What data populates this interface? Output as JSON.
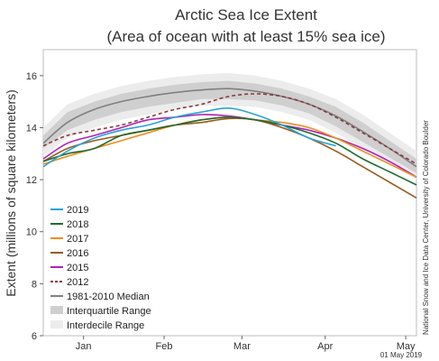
{
  "chart_data": {
    "type": "line",
    "title": "Arctic Sea Ice Extent",
    "subtitle": "(Area of ocean with at least 15% sea ice)",
    "ylabel": "Extent (millions of square kilometers)",
    "ylim": [
      6,
      17
    ],
    "yticks": [
      6,
      8,
      10,
      12,
      14,
      16
    ],
    "xlim": [
      1,
      140
    ],
    "xticks": [
      {
        "label": "Jan",
        "day": 16
      },
      {
        "label": "Feb",
        "day": 46
      },
      {
        "label": "Mar",
        "day": 75
      },
      {
        "label": "Apr",
        "day": 106
      },
      {
        "label": "May",
        "day": 136
      }
    ],
    "credit": "National Snow and Ice Data Center, University of Colorado Boulder",
    "date_label": "01 May 2019",
    "x": [
      1,
      10,
      20,
      30,
      40,
      50,
      60,
      70,
      80,
      90,
      100,
      110,
      120,
      130,
      140
    ],
    "interdecile_range": {
      "name": "Interdecile Range",
      "color": "#ececec",
      "upper": [
        14.0,
        14.9,
        15.3,
        15.6,
        15.8,
        15.95,
        16.05,
        16.1,
        16.0,
        15.8,
        15.5,
        15.1,
        14.5,
        13.8,
        13.1
      ],
      "lower": [
        12.9,
        13.6,
        14.0,
        14.3,
        14.5,
        14.7,
        14.85,
        14.85,
        14.8,
        14.6,
        14.3,
        13.8,
        13.2,
        12.6,
        12.0
      ]
    },
    "interquartile_range": {
      "name": "Interquartile Range",
      "color": "#cfcfcf",
      "upper": [
        13.7,
        14.6,
        15.0,
        15.3,
        15.5,
        15.65,
        15.75,
        15.8,
        15.7,
        15.5,
        15.2,
        14.8,
        14.2,
        13.5,
        12.8
      ],
      "lower": [
        13.2,
        13.9,
        14.3,
        14.6,
        14.8,
        14.95,
        15.1,
        15.1,
        15.05,
        14.85,
        14.55,
        14.05,
        13.45,
        12.85,
        12.25
      ]
    },
    "series": [
      {
        "name": "2019",
        "color": "#29a3d6",
        "dash": "",
        "values": [
          12.5,
          13.1,
          13.6,
          13.9,
          14.1,
          14.4,
          14.6,
          14.75,
          14.5,
          14.1,
          13.6,
          13.3,
          null,
          null,
          null
        ]
      },
      {
        "name": "2018",
        "color": "#1f6b2f",
        "dash": "",
        "values": [
          12.7,
          13.0,
          13.2,
          13.7,
          13.9,
          14.1,
          14.3,
          14.4,
          14.3,
          14.1,
          13.8,
          13.4,
          12.8,
          12.3,
          11.8
        ]
      },
      {
        "name": "2017",
        "color": "#f08c1e",
        "dash": "",
        "values": [
          12.6,
          12.9,
          13.2,
          13.5,
          13.8,
          14.1,
          14.3,
          14.4,
          14.3,
          14.2,
          14.0,
          13.6,
          13.1,
          12.6,
          12.1
        ]
      },
      {
        "name": "2016",
        "color": "#9a5a1f",
        "dash": "",
        "values": [
          12.7,
          13.2,
          13.5,
          13.7,
          13.9,
          14.1,
          14.2,
          14.35,
          14.3,
          14.0,
          13.6,
          13.1,
          12.5,
          11.9,
          11.3
        ]
      },
      {
        "name": "2015",
        "color": "#b120b8",
        "dash": "",
        "values": [
          12.8,
          13.4,
          13.7,
          14.0,
          14.3,
          14.4,
          14.5,
          14.45,
          14.3,
          14.1,
          13.9,
          13.6,
          13.2,
          12.7,
          12.1
        ]
      },
      {
        "name": "2012",
        "color": "#8b3a3a",
        "dash": "4,3",
        "values": [
          13.3,
          13.7,
          13.9,
          14.1,
          14.4,
          14.7,
          14.9,
          15.2,
          15.3,
          15.2,
          14.9,
          14.4,
          13.8,
          13.2,
          12.6
        ]
      },
      {
        "name": "1981-2010 Median",
        "color": "#808080",
        "dash": "",
        "values": [
          13.4,
          14.2,
          14.7,
          15.0,
          15.2,
          15.35,
          15.45,
          15.5,
          15.4,
          15.2,
          14.9,
          14.45,
          13.85,
          13.2,
          12.5
        ]
      }
    ]
  }
}
